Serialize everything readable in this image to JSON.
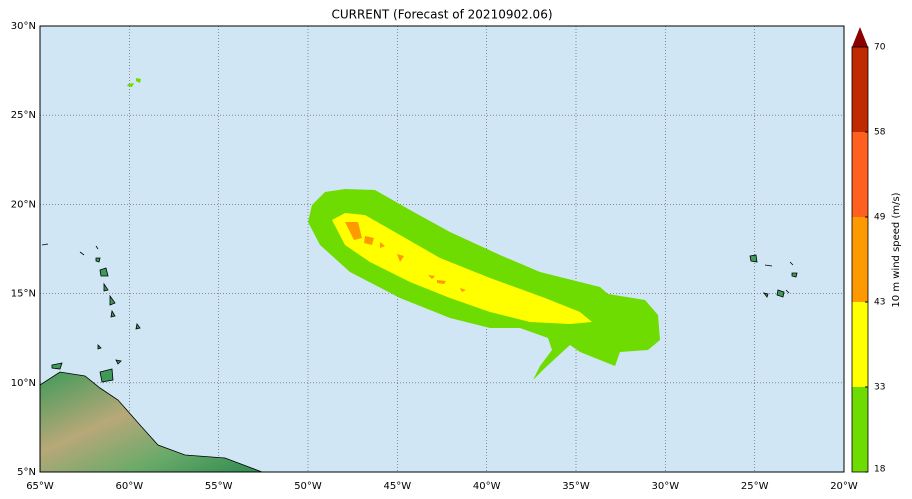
{
  "title": "CURRENT (Forecast of 20210902.06)",
  "lon_labels": [
    "65°W",
    "60°W",
    "55°W",
    "50°W",
    "45°W",
    "40°W",
    "35°W",
    "30°W",
    "25°W",
    "20°W"
  ],
  "lat_labels": [
    "5°N",
    "10°N",
    "15°N",
    "20°N",
    "25°N",
    "30°N"
  ],
  "colorbar": {
    "label": "10 m wind speed (m/s)",
    "ticks": [
      18,
      33,
      43,
      49,
      58,
      70
    ],
    "colors": [
      "#6edc00",
      "#ffff00",
      "#ff9900",
      "#ff6020",
      "#c02a00"
    ],
    "extend_color": "#8b0000"
  }
}
